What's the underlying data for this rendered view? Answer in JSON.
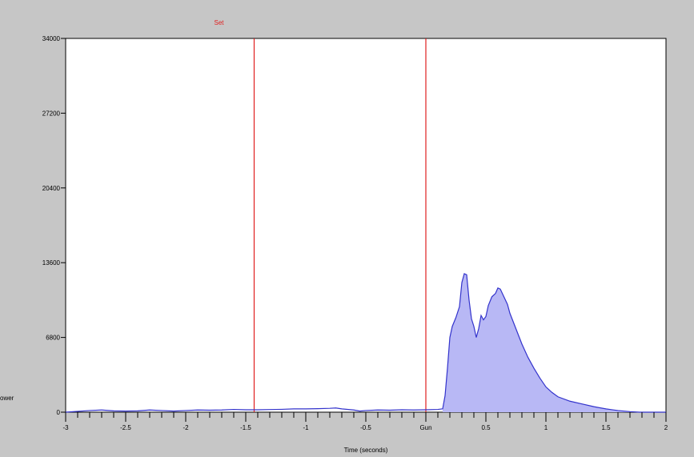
{
  "chart_data": {
    "type": "area",
    "title": "",
    "xlabel": "Time (seconds)",
    "ylabel": "ower",
    "xlim": [
      -3,
      2
    ],
    "ylim": [
      0,
      34000
    ],
    "y_ticks": [
      {
        "value": 0,
        "label": "0"
      },
      {
        "value": 6800,
        "label": "6800"
      },
      {
        "value": 13600,
        "label": "13600"
      },
      {
        "value": 20400,
        "label": "20400"
      },
      {
        "value": 27200,
        "label": "27200"
      },
      {
        "value": 34000,
        "label": "34000"
      }
    ],
    "x_ticks": [
      {
        "value": -3,
        "label": "-3"
      },
      {
        "value": -2.5,
        "label": "-2.5"
      },
      {
        "value": -2,
        "label": "-2"
      },
      {
        "value": -1.5,
        "label": "-1.5"
      },
      {
        "value": -1,
        "label": "-1"
      },
      {
        "value": -0.5,
        "label": "-0.5"
      },
      {
        "value": 0,
        "label": "Gun"
      },
      {
        "value": 0.5,
        "label": "0.5"
      },
      {
        "value": 1,
        "label": "1"
      },
      {
        "value": 1.5,
        "label": "1.5"
      },
      {
        "value": 2,
        "label": "2"
      }
    ],
    "x_minor_step": 0.1,
    "grid": false,
    "markers": [
      {
        "x": -1.43,
        "label": "Set"
      },
      {
        "x": 0,
        "label": ""
      }
    ],
    "series": [
      {
        "color": "#3333cc",
        "fill": "#b8b8f5",
        "filled_from": 0.14,
        "points": [
          [
            -3.0,
            0
          ],
          [
            -2.8,
            150
          ],
          [
            -2.7,
            200
          ],
          [
            -2.6,
            120
          ],
          [
            -2.5,
            100
          ],
          [
            -2.4,
            120
          ],
          [
            -2.3,
            200
          ],
          [
            -2.2,
            150
          ],
          [
            -2.1,
            100
          ],
          [
            -2.0,
            150
          ],
          [
            -1.9,
            200
          ],
          [
            -1.8,
            180
          ],
          [
            -1.7,
            200
          ],
          [
            -1.6,
            250
          ],
          [
            -1.5,
            220
          ],
          [
            -1.4,
            220
          ],
          [
            -1.3,
            240
          ],
          [
            -1.2,
            260
          ],
          [
            -1.1,
            300
          ],
          [
            -1.0,
            300
          ],
          [
            -0.9,
            320
          ],
          [
            -0.8,
            350
          ],
          [
            -0.75,
            380
          ],
          [
            -0.7,
            300
          ],
          [
            -0.6,
            200
          ],
          [
            -0.55,
            100
          ],
          [
            -0.5,
            150
          ],
          [
            -0.4,
            200
          ],
          [
            -0.3,
            180
          ],
          [
            -0.2,
            220
          ],
          [
            -0.1,
            200
          ],
          [
            0.0,
            220
          ],
          [
            0.1,
            250
          ],
          [
            0.14,
            300
          ],
          [
            0.16,
            1500
          ],
          [
            0.18,
            4000
          ],
          [
            0.2,
            6800
          ],
          [
            0.22,
            7800
          ],
          [
            0.25,
            8600
          ],
          [
            0.28,
            9600
          ],
          [
            0.3,
            11800
          ],
          [
            0.32,
            12600
          ],
          [
            0.34,
            12500
          ],
          [
            0.36,
            10200
          ],
          [
            0.38,
            8500
          ],
          [
            0.4,
            7800
          ],
          [
            0.42,
            6800
          ],
          [
            0.44,
            7600
          ],
          [
            0.46,
            8800
          ],
          [
            0.48,
            8400
          ],
          [
            0.5,
            8700
          ],
          [
            0.52,
            9700
          ],
          [
            0.55,
            10500
          ],
          [
            0.58,
            10800
          ],
          [
            0.6,
            11300
          ],
          [
            0.62,
            11200
          ],
          [
            0.65,
            10500
          ],
          [
            0.68,
            9800
          ],
          [
            0.7,
            9000
          ],
          [
            0.75,
            7600
          ],
          [
            0.8,
            6200
          ],
          [
            0.85,
            5000
          ],
          [
            0.9,
            4000
          ],
          [
            0.95,
            3100
          ],
          [
            1.0,
            2300
          ],
          [
            1.05,
            1800
          ],
          [
            1.1,
            1400
          ],
          [
            1.2,
            1000
          ],
          [
            1.3,
            750
          ],
          [
            1.4,
            500
          ],
          [
            1.5,
            300
          ],
          [
            1.6,
            150
          ],
          [
            1.7,
            50
          ],
          [
            1.78,
            0
          ],
          [
            2.0,
            0
          ]
        ]
      }
    ]
  }
}
